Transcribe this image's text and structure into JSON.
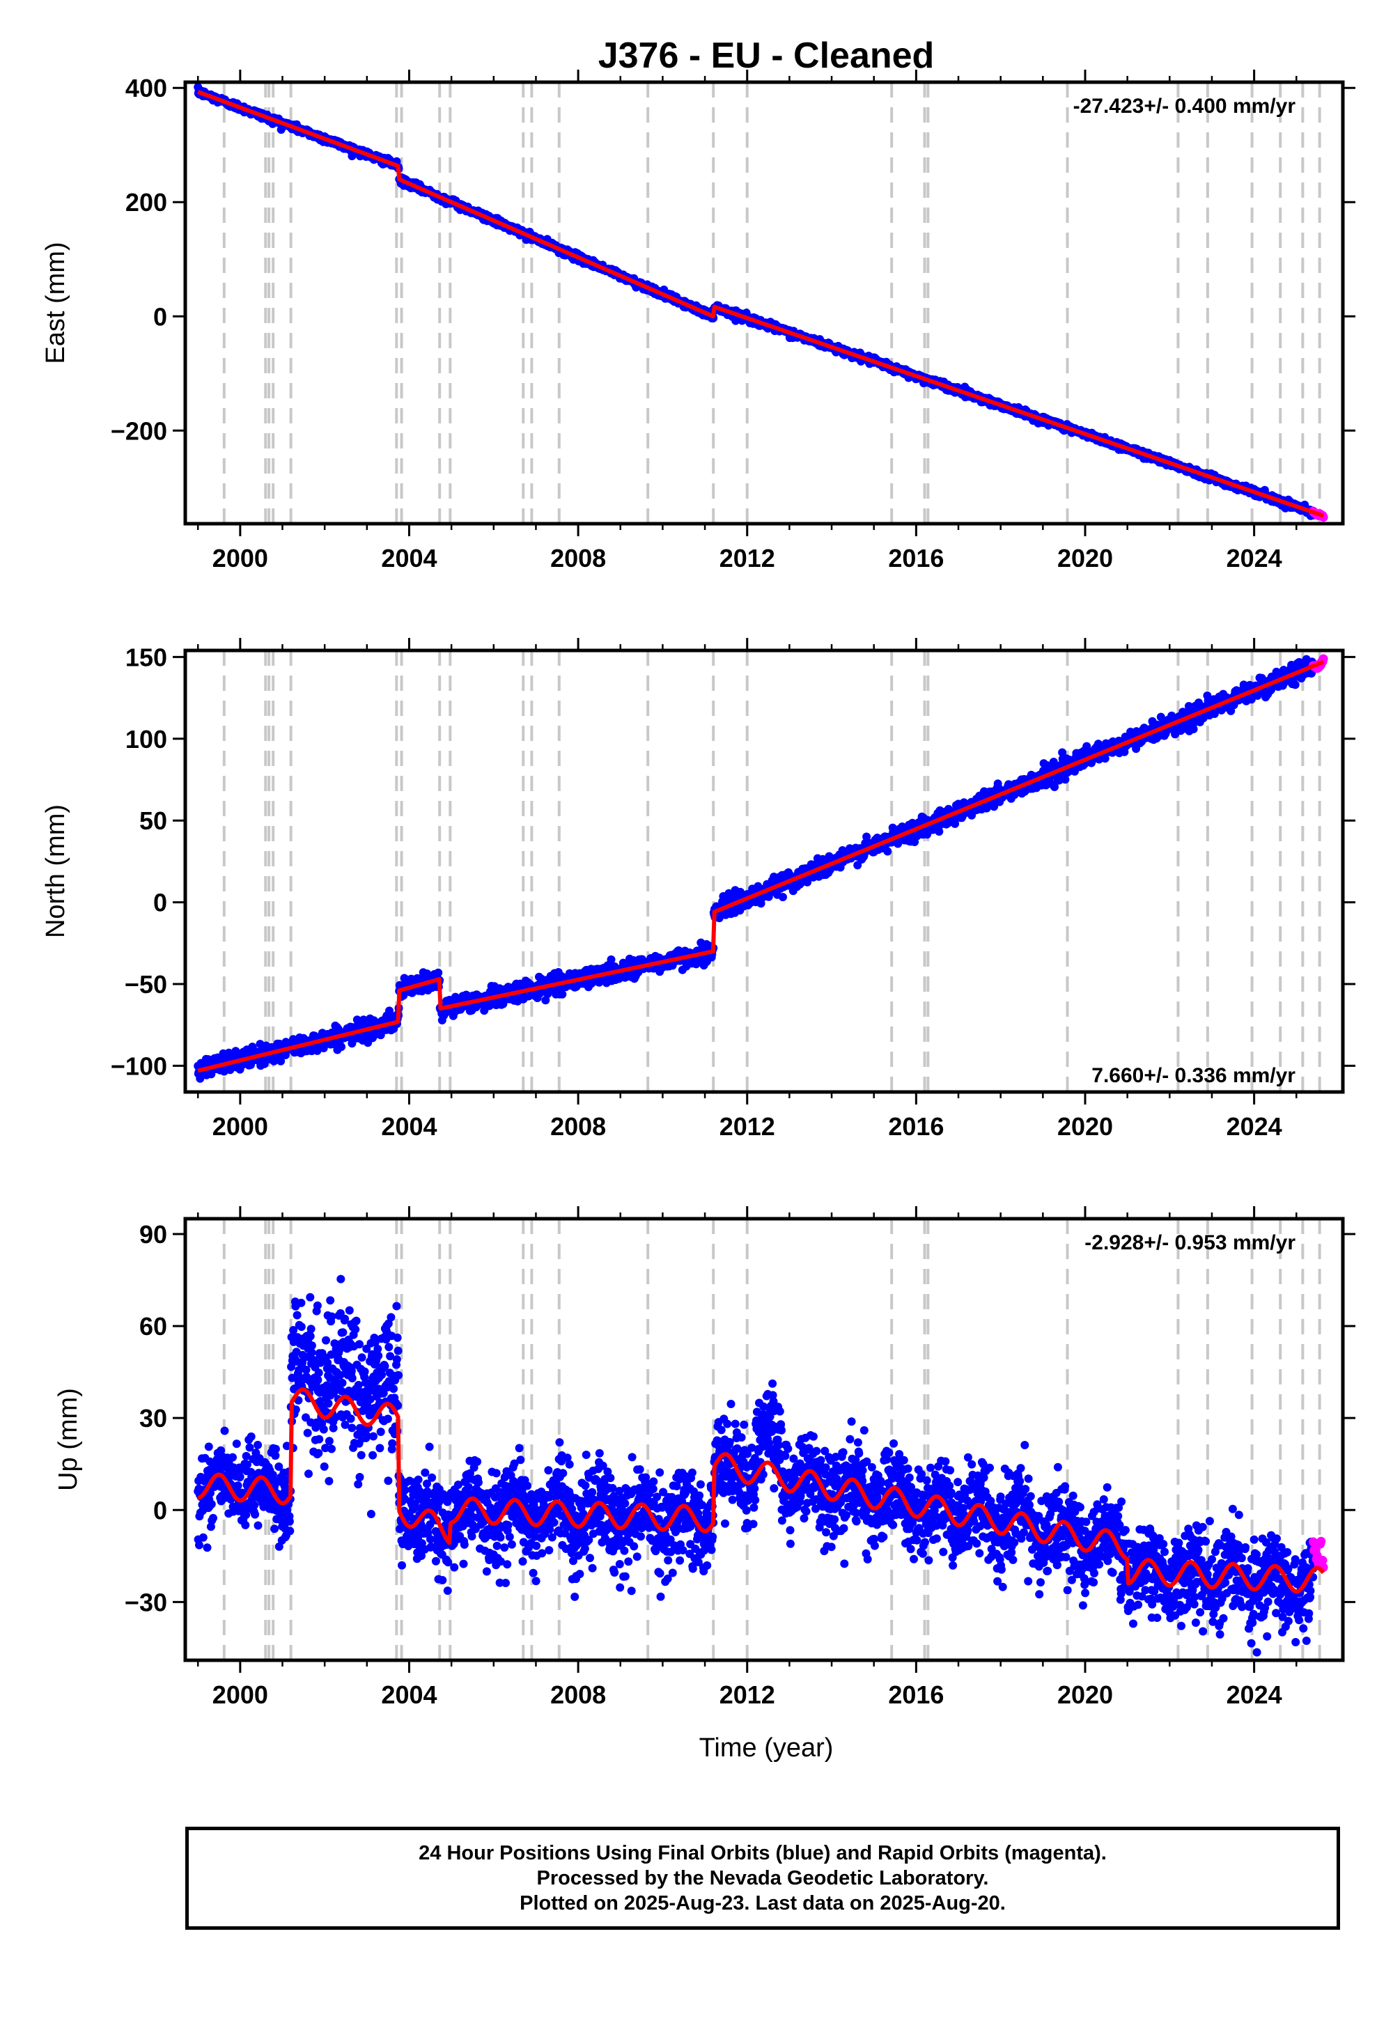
{
  "chart_data": {
    "title": "J376  - EU - Cleaned",
    "xlabel": "Time (year)",
    "xlim": [
      1998.7,
      2026.1
    ],
    "xticks": [
      2000,
      2004,
      2008,
      2012,
      2016,
      2020,
      2024
    ],
    "grid": "off",
    "event_lines": [
      1999.62,
      2000.6,
      2000.68,
      2000.78,
      2001.2,
      2003.7,
      2003.82,
      2004.72,
      2004.97,
      2006.7,
      2006.9,
      2007.55,
      2009.65,
      2011.2,
      2012.0,
      2015.42,
      2016.2,
      2016.28,
      2019.58,
      2022.2,
      2022.9,
      2023.95,
      2024.62,
      2025.15,
      2025.55
    ],
    "panels": [
      {
        "type": "scatter",
        "component": "east",
        "ylabel": "East (mm)",
        "ylim": [
          -363,
          410
        ],
        "yticks": [
          400,
          200,
          0,
          -200
        ],
        "ytick_labels": [
          "400",
          "200",
          "0",
          "−200"
        ],
        "rate_label": "-27.423+/- 0.400 mm/yr",
        "rate_position": "top-right",
        "series": [
          {
            "name": "Final Orbits",
            "color": "#0000ff",
            "x_range": [
              1999.0,
              2025.4
            ],
            "noise_mm": 3
          },
          {
            "name": "Rapid Orbits",
            "color": "#ff00ff",
            "x_range": [
              2025.4,
              2025.64
            ]
          },
          {
            "name": "model",
            "color": "#ff0000",
            "type": "line",
            "x": [
              1999.0,
              2003.75,
              2003.76,
              2011.2,
              2011.21,
              2025.64
            ],
            "y": [
              393,
              263,
              240,
              0,
              17,
              -349
            ]
          }
        ]
      },
      {
        "type": "scatter",
        "component": "north",
        "ylabel": "North (mm)",
        "ylim": [
          -116,
          154
        ],
        "yticks": [
          150,
          100,
          50,
          0,
          -50,
          -100
        ],
        "ytick_labels": [
          "150",
          "100",
          "50",
          "0",
          "−50",
          "−100"
        ],
        "rate_label": "7.660+/- 0.336 mm/yr",
        "rate_position": "bottom-right",
        "series": [
          {
            "name": "Final Orbits",
            "color": "#0000ff",
            "x_range": [
              1999.0,
              2025.4
            ],
            "noise_mm": 2.8
          },
          {
            "name": "Rapid Orbits",
            "color": "#ff00ff",
            "x_range": [
              2025.4,
              2025.64
            ]
          },
          {
            "name": "model",
            "color": "#ff0000",
            "type": "line",
            "x": [
              1999.0,
              2003.75,
              2003.76,
              2004.72,
              2004.73,
              2011.2,
              2011.21,
              2025.64
            ],
            "y": [
              -103,
              -73,
              -54,
              -47,
              -65,
              -30,
              -6,
              147
            ]
          }
        ]
      },
      {
        "type": "scatter",
        "component": "up",
        "ylabel": "Up (mm)",
        "ylim": [
          -49,
          95
        ],
        "yticks": [
          90,
          60,
          30,
          0,
          -30
        ],
        "ytick_labels": [
          "90",
          "60",
          "30",
          "0",
          "−30"
        ],
        "rate_label": "-2.928+/- 0.953 mm/yr",
        "rate_position": "top-right",
        "series": [
          {
            "name": "Final Orbits",
            "color": "#0000ff",
            "x_range": [
              1999.0,
              2025.4
            ],
            "noise_mm": 7
          },
          {
            "name": "Rapid Orbits",
            "color": "#ff00ff",
            "x_range": [
              2025.4,
              2025.64
            ]
          },
          {
            "name": "model",
            "color": "#ff0000",
            "type": "line",
            "seasonal_amplitude_mm": 4,
            "x": [
              1999.0,
              2001.2,
              2001.21,
              2003.75,
              2003.76,
              2004.97,
              2004.98,
              2011.2,
              2011.21,
              2021.0,
              2021.01,
              2025.64
            ],
            "y": [
              8,
              6,
              36,
              30,
              0,
              -7,
              0,
              -3,
              15,
              -12,
              -20,
              -23
            ]
          }
        ]
      }
    ]
  },
  "footer": {
    "line1": "24 Hour Positions Using Final Orbits (blue) and Rapid Orbits (magenta).",
    "line2": "Processed by the Nevada Geodetic Laboratory.",
    "line3": "Plotted on 2025-Aug-23. Last data on 2025-Aug-20."
  }
}
